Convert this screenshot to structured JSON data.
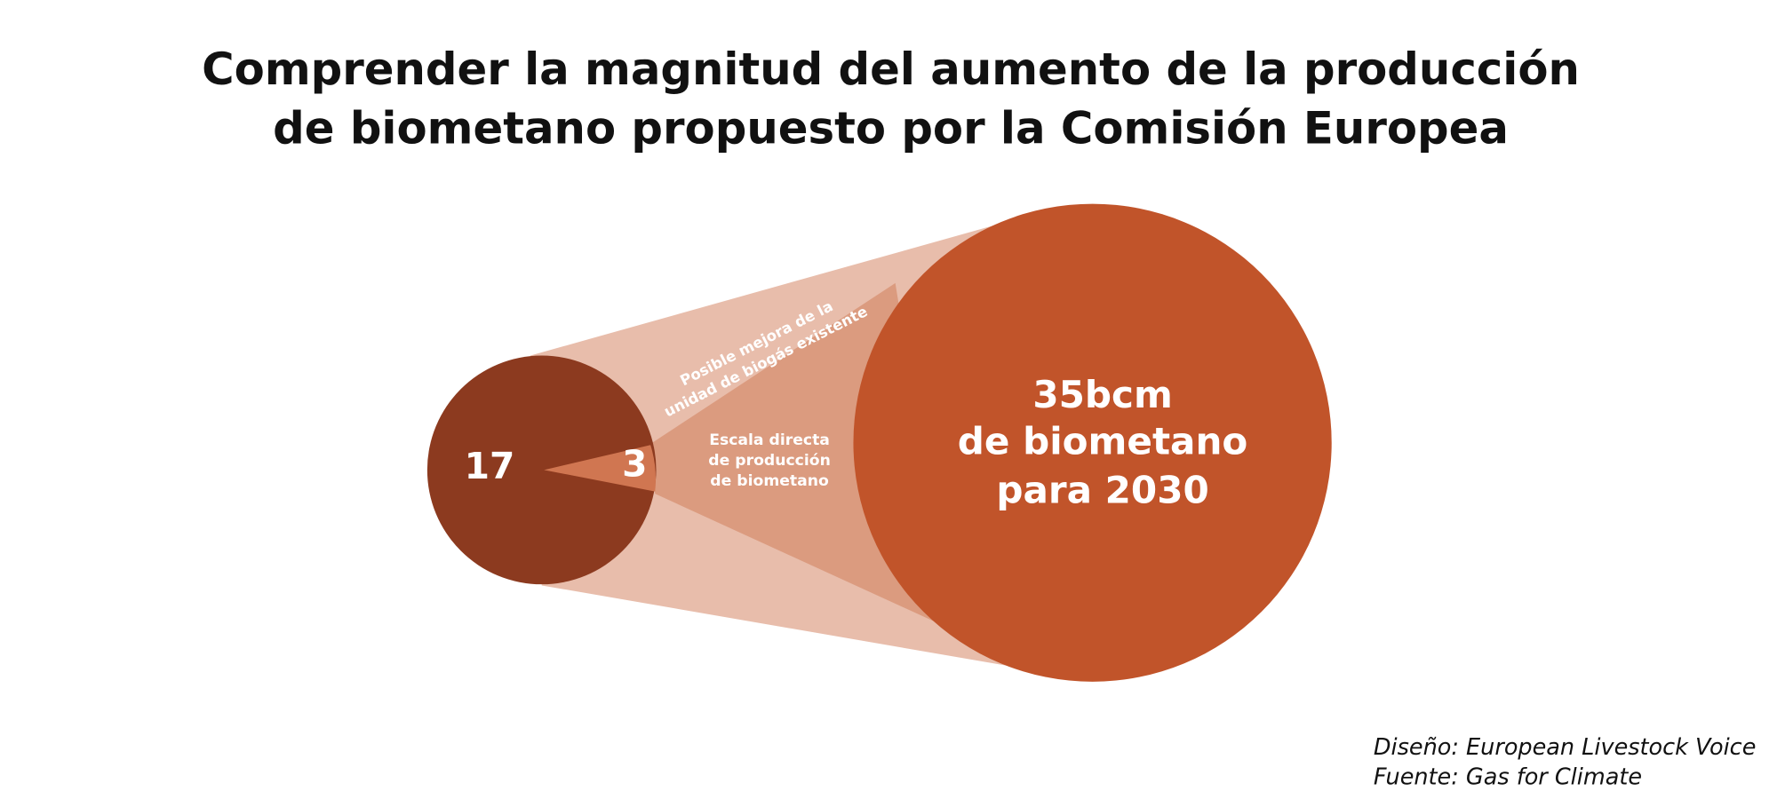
{
  "title": [
    "Comprender la magnitud del aumento de la producción",
    "de biometano propuesto por la Comisión Europea"
  ],
  "small_circle": {
    "label": "17",
    "wedge_label": "3"
  },
  "upper_band": [
    "Posible mejora de la",
    "unidad de biogás existente"
  ],
  "lower_band": [
    "Escala directa",
    "de producción",
    "de biometano"
  ],
  "big_circle": [
    "35bcm",
    "de biometano",
    "para 2030"
  ],
  "footer": [
    "Diseño: European Livestock Voice",
    "Fuente: Gas for Climate"
  ]
}
